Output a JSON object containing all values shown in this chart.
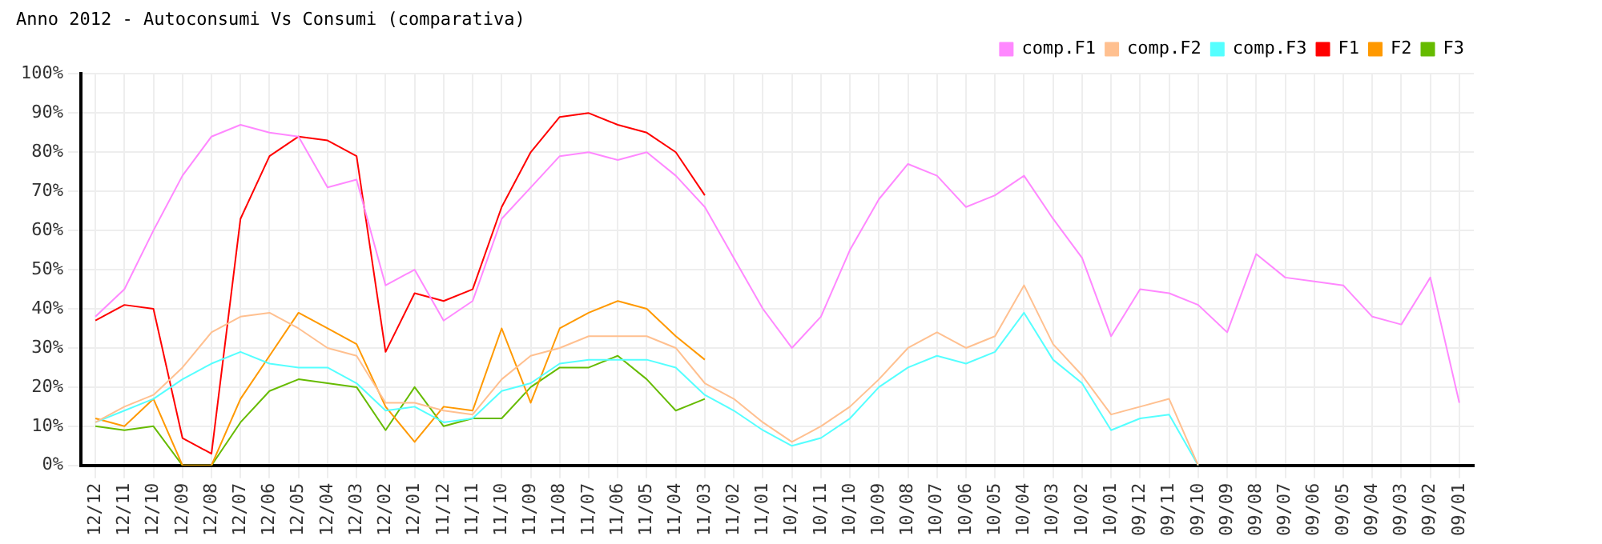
{
  "chart_data": {
    "type": "line",
    "title": "Anno 2012 - Autoconsumi Vs Consumi (comparativa)",
    "categories": [
      "12/12",
      "12/11",
      "12/10",
      "12/09",
      "12/08",
      "12/07",
      "12/06",
      "12/05",
      "12/04",
      "12/03",
      "12/02",
      "12/01",
      "11/12",
      "11/11",
      "11/10",
      "11/09",
      "11/08",
      "11/07",
      "11/06",
      "11/05",
      "11/04",
      "11/03",
      "11/02",
      "11/01",
      "10/12",
      "10/11",
      "10/10",
      "10/09",
      "10/08",
      "10/07",
      "10/06",
      "10/05",
      "10/04",
      "10/03",
      "10/02",
      "10/01",
      "09/12",
      "09/11",
      "09/10",
      "09/09",
      "09/08",
      "09/07",
      "09/06",
      "09/05",
      "09/04",
      "09/03",
      "09/02",
      "09/01"
    ],
    "series": [
      {
        "name": "comp.F1",
        "color": "#ff88ff",
        "values": [
          38,
          45,
          60,
          74,
          84,
          87,
          85,
          84,
          71,
          73,
          46,
          50,
          37,
          42,
          63,
          71,
          79,
          80,
          78,
          80,
          74,
          66,
          53,
          40,
          30,
          38,
          55,
          68,
          77,
          74,
          66,
          69,
          74,
          63,
          53,
          33,
          45,
          44,
          41,
          34,
          54,
          48,
          47,
          46,
          38,
          36,
          48,
          16
        ]
      },
      {
        "name": "comp.F2",
        "color": "#ffc090",
        "values": [
          11,
          15,
          18,
          25,
          34,
          38,
          39,
          35,
          30,
          28,
          16,
          16,
          14,
          13,
          22,
          28,
          30,
          33,
          33,
          33,
          30,
          21,
          17,
          11,
          6,
          10,
          15,
          22,
          30,
          34,
          30,
          33,
          46,
          31,
          23,
          13,
          15,
          17,
          0,
          null,
          null,
          null,
          null,
          null,
          null,
          null,
          null,
          null
        ]
      },
      {
        "name": "comp.F3",
        "color": "#55ffff",
        "values": [
          11,
          14,
          17,
          22,
          26,
          29,
          26,
          25,
          25,
          21,
          14,
          15,
          11,
          12,
          19,
          21,
          26,
          27,
          27,
          27,
          25,
          18,
          14,
          9,
          5,
          7,
          12,
          20,
          25,
          28,
          26,
          29,
          39,
          27,
          21,
          9,
          12,
          13,
          0,
          null,
          null,
          null,
          null,
          null,
          null,
          null,
          null,
          null
        ]
      },
      {
        "name": "F1",
        "color": "#ff0000",
        "values": [
          37,
          41,
          40,
          7,
          3,
          63,
          79,
          84,
          83,
          79,
          29,
          44,
          42,
          45,
          66,
          80,
          89,
          90,
          87,
          85,
          80,
          69,
          null,
          null,
          null,
          null,
          null,
          null,
          null,
          null,
          null,
          null,
          null,
          null,
          null,
          null,
          null,
          null,
          null,
          null,
          null,
          null,
          null,
          null,
          null,
          null,
          null,
          null
        ]
      },
      {
        "name": "F2",
        "color": "#ff9900",
        "values": [
          12,
          10,
          17,
          0,
          0,
          17,
          28,
          39,
          35,
          31,
          15,
          6,
          15,
          14,
          35,
          16,
          35,
          39,
          42,
          40,
          33,
          27,
          null,
          null,
          null,
          null,
          null,
          null,
          null,
          null,
          null,
          null,
          null,
          null,
          null,
          null,
          null,
          null,
          null,
          null,
          null,
          null,
          null,
          null,
          null,
          null,
          null,
          null
        ]
      },
      {
        "name": "F3",
        "color": "#66bb00",
        "values": [
          10,
          9,
          10,
          0,
          0,
          11,
          19,
          22,
          21,
          20,
          9,
          20,
          10,
          12,
          12,
          20,
          25,
          25,
          28,
          22,
          14,
          17,
          null,
          null,
          null,
          null,
          null,
          null,
          null,
          null,
          null,
          null,
          null,
          null,
          null,
          null,
          null,
          null,
          null,
          null,
          null,
          null,
          null,
          null,
          null,
          null,
          null,
          null
        ]
      }
    ],
    "ylim": [
      0,
      100
    ],
    "yticks": [
      {
        "value": 0,
        "label": "0%"
      },
      {
        "value": 10,
        "label": "10%"
      },
      {
        "value": 20,
        "label": "20%"
      },
      {
        "value": 30,
        "label": "30%"
      },
      {
        "value": 40,
        "label": "40%"
      },
      {
        "value": 50,
        "label": "50%"
      },
      {
        "value": 60,
        "label": "60%"
      },
      {
        "value": 70,
        "label": "70%"
      },
      {
        "value": 80,
        "label": "80%"
      },
      {
        "value": 90,
        "label": "90%"
      },
      {
        "value": 100,
        "label": "100%"
      }
    ],
    "grid": true,
    "legend": "top right",
    "marker": "none",
    "line_style": "solid"
  }
}
